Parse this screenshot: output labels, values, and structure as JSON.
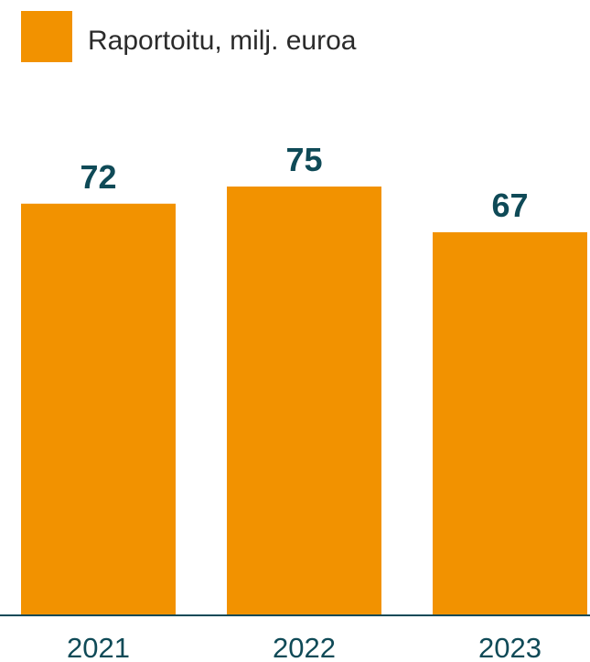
{
  "chart_data": {
    "type": "bar",
    "categories": [
      "2021",
      "2022",
      "2023"
    ],
    "series": [
      {
        "name": "Raportoitu, milj. euroa",
        "values": [
          72,
          75,
          67
        ],
        "color": "#F29200"
      }
    ],
    "value_labels": [
      "72",
      "75",
      "67"
    ],
    "title": "",
    "xlabel": "",
    "ylabel": "",
    "ylim": [
      0,
      75
    ],
    "grid": false,
    "legend_position": "top-left",
    "colors": {
      "bar": "#F29200",
      "axis": "#0F4A57",
      "value_text": "#0F4A57",
      "tick_text": "#0F4A57",
      "legend_text": "#2B2B2B"
    }
  }
}
